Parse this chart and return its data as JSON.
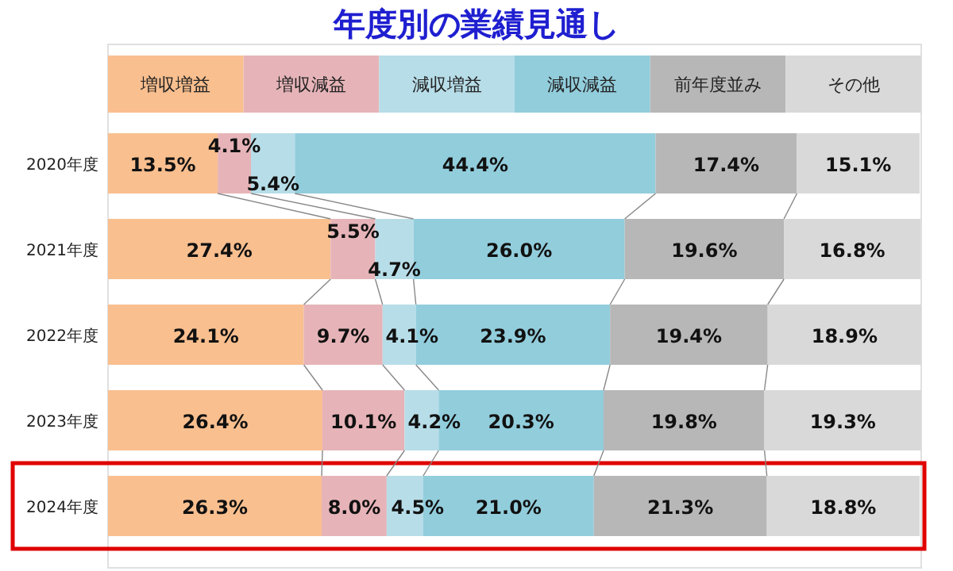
{
  "chart_data": {
    "type": "bar",
    "orientation": "horizontal",
    "stacked": true,
    "title": "年度別の業績見通し",
    "categories": [
      "2020年度",
      "2021年度",
      "2022年度",
      "2023年度",
      "2024年度"
    ],
    "series": [
      {
        "name": "増収増益",
        "color": "#f9bf8f",
        "values": [
          13.5,
          27.4,
          24.1,
          26.4,
          26.3
        ],
        "value_labels": [
          "13.5%",
          "27.4%",
          "24.1%",
          "26.4%",
          "26.3%"
        ]
      },
      {
        "name": "増収減益",
        "color": "#e6b4b8",
        "values": [
          4.1,
          5.5,
          9.7,
          10.1,
          8.0
        ],
        "value_labels": [
          "4.1%",
          "5.5%",
          "9.7%",
          "10.1%",
          "8.0%"
        ]
      },
      {
        "name": "減収増益",
        "color": "#b7dde8",
        "values": [
          5.4,
          4.7,
          4.1,
          4.2,
          4.5
        ],
        "value_labels": [
          "5.4%",
          "4.7%",
          "4.1%",
          "4.2%",
          "4.5%"
        ]
      },
      {
        "name": "減収減益",
        "color": "#92cddc",
        "values": [
          44.4,
          26.0,
          23.9,
          20.3,
          21.0
        ],
        "value_labels": [
          "44.4%",
          "26.0%",
          "23.9%",
          "20.3%",
          "21.0%"
        ]
      },
      {
        "name": "前年度並み",
        "color": "#b7b7b7",
        "values": [
          17.4,
          19.6,
          19.4,
          19.8,
          21.3
        ],
        "value_labels": [
          "17.4%",
          "19.6%",
          "19.4%",
          "19.8%",
          "21.3%"
        ]
      },
      {
        "name": "その他",
        "color": "#d9d9d9",
        "values": [
          15.1,
          16.8,
          18.9,
          19.3,
          18.8
        ],
        "value_labels": [
          "15.1%",
          "16.8%",
          "18.9%",
          "19.3%",
          "18.8%"
        ]
      }
    ],
    "tick_labels": "y",
    "legend": "top"
  }
}
